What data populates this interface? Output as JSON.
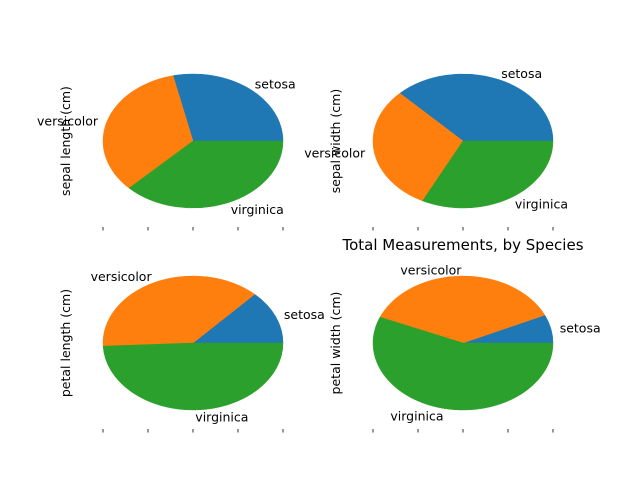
{
  "figure": {
    "title": "Total Measurements, by Species"
  },
  "chart_data": [
    {
      "type": "pie",
      "ylabel": "sepal length (cm)",
      "labels": [
        "setosa",
        "versicolor",
        "virginica"
      ],
      "values": [
        250.3,
        296.8,
        329.4
      ],
      "colors": [
        "#1f77b4",
        "#ff7f0e",
        "#2ca02c"
      ]
    },
    {
      "type": "pie",
      "ylabel": "sepal width (cm)",
      "labels": [
        "setosa",
        "versicolor",
        "virginica"
      ],
      "values": [
        171.4,
        138.5,
        148.7
      ],
      "colors": [
        "#1f77b4",
        "#ff7f0e",
        "#2ca02c"
      ]
    },
    {
      "type": "pie",
      "ylabel": "petal length (cm)",
      "labels": [
        "setosa",
        "versicolor",
        "virginica"
      ],
      "values": [
        73.1,
        213.0,
        277.6
      ],
      "colors": [
        "#1f77b4",
        "#ff7f0e",
        "#2ca02c"
      ]
    },
    {
      "type": "pie",
      "ylabel": "petal width (cm)",
      "labels": [
        "setosa",
        "versicolor",
        "virginica"
      ],
      "values": [
        12.3,
        66.3,
        101.3
      ],
      "colors": [
        "#1f77b4",
        "#ff7f0e",
        "#2ca02c"
      ]
    }
  ]
}
